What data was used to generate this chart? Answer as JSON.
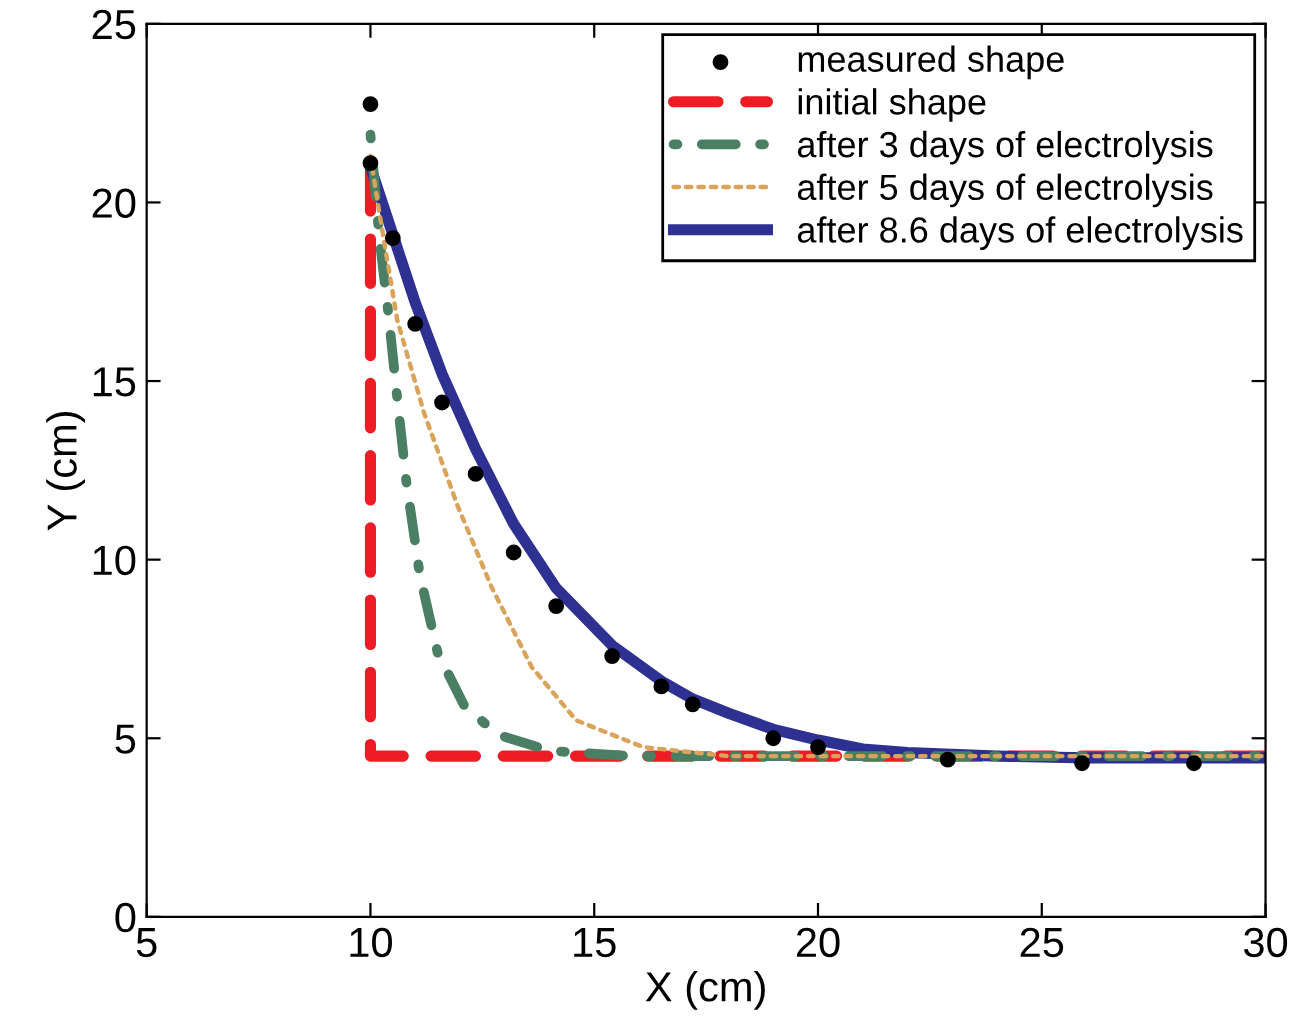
{
  "chart_data": {
    "type": "line",
    "xlabel": "X (cm)",
    "ylabel": "Y (cm)",
    "xlim": [
      5,
      30
    ],
    "ylim": [
      0,
      25
    ],
    "xticks": [
      5,
      10,
      15,
      20,
      25,
      30
    ],
    "yticks": [
      0,
      5,
      10,
      15,
      20,
      25
    ],
    "grid": false,
    "legend": "top right",
    "series": [
      {
        "name": "measured shape",
        "type": "scatter",
        "marker": "circle",
        "color": "#000000",
        "x": [
          10.0,
          10.0,
          10.5,
          11.0,
          11.6,
          12.35,
          13.2,
          14.15,
          15.4,
          16.5,
          17.2,
          19.0,
          20.0,
          22.9,
          25.9,
          28.4
        ],
        "values": [
          22.75,
          21.1,
          19.0,
          16.6,
          14.4,
          12.4,
          10.2,
          8.7,
          7.3,
          6.45,
          5.95,
          5.0,
          4.75,
          4.4,
          4.3,
          4.3
        ]
      },
      {
        "name": "initial shape",
        "line_style": "dashed",
        "color": "#ee1c25",
        "x": [
          10,
          10,
          30
        ],
        "values": [
          21.0,
          4.5,
          4.5
        ]
      },
      {
        "name": "after 3 days of electrolysis",
        "line_style": "dashdot",
        "color": "#4a7f63",
        "x": [
          10.0,
          10.2,
          10.4,
          10.6,
          10.8,
          11.1,
          11.5,
          12.1,
          12.85,
          14.0,
          15.8,
          30
        ],
        "values": [
          21.9,
          19.0,
          16.9,
          14.5,
          12.2,
          9.6,
          7.4,
          5.9,
          5.1,
          4.65,
          4.5,
          4.5
        ]
      },
      {
        "name": "after 5 days of electrolysis",
        "line_style": "dotted",
        "color": "#d9a35a",
        "x": [
          10.0,
          10.2,
          10.6,
          11.2,
          11.95,
          12.7,
          13.6,
          14.6,
          16.1,
          18.0,
          30
        ],
        "values": [
          21.3,
          19.7,
          16.7,
          14.1,
          11.5,
          9.25,
          7.0,
          5.5,
          4.75,
          4.5,
          4.5
        ]
      },
      {
        "name": "after 8.6 days of electrolysis",
        "line_style": "solid",
        "color": "#2e3192",
        "x": [
          10.0,
          10.5,
          11.0,
          11.6,
          12.35,
          13.2,
          14.15,
          15.4,
          16.5,
          17.2,
          18.0,
          19.0,
          20.0,
          21.0,
          22.0,
          24.0,
          26.0,
          30.0
        ],
        "values": [
          21.0,
          19.1,
          17.2,
          15.2,
          13.1,
          11.0,
          9.2,
          7.6,
          6.6,
          6.1,
          5.7,
          5.25,
          4.95,
          4.7,
          4.6,
          4.5,
          4.45,
          4.45
        ]
      }
    ]
  }
}
